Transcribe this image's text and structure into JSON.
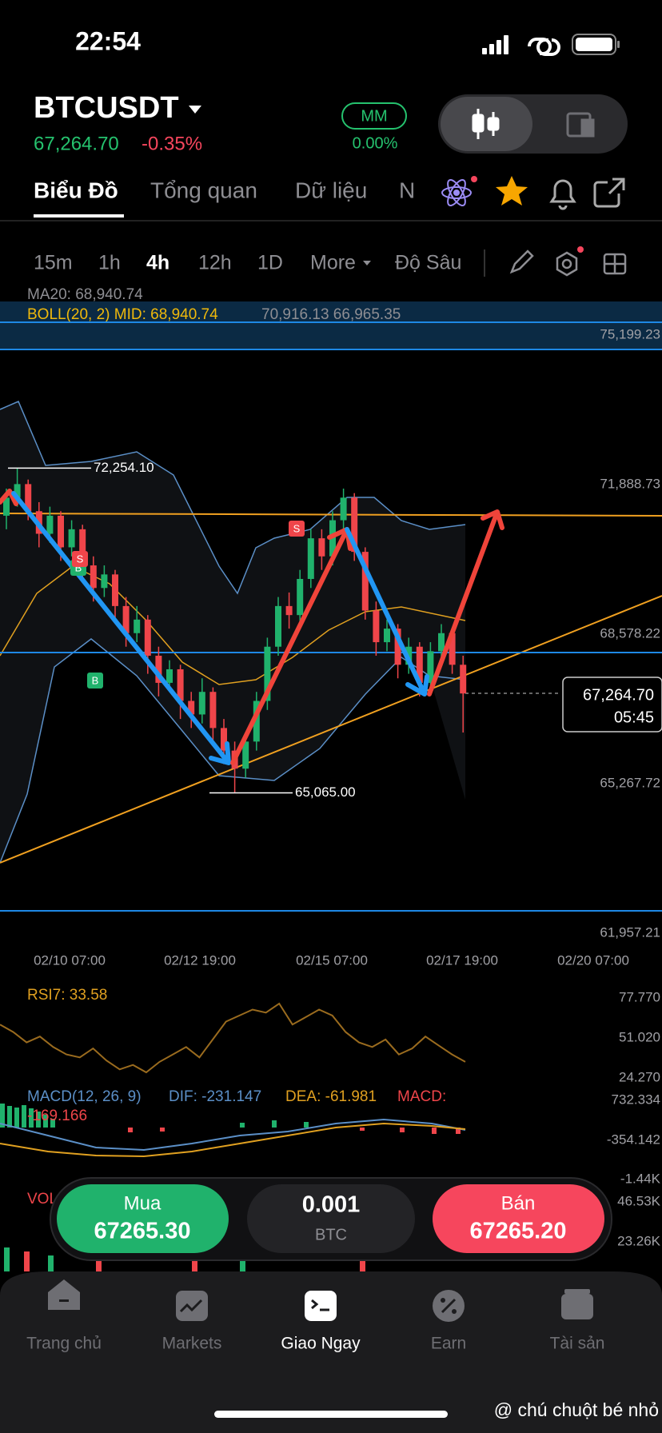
{
  "status": {
    "time": "22:54"
  },
  "header": {
    "symbol": "BTCUSDT",
    "price": "67,264.70",
    "change": "-0.35%",
    "badge": "MM",
    "badge_value": "0.00%"
  },
  "tabs": [
    "Biểu Đồ",
    "Tổng quan",
    "Dữ liệu",
    "N"
  ],
  "intervals": [
    "15m",
    "1h",
    "4h",
    "12h",
    "1D",
    "More",
    "Độ Sâu"
  ],
  "indicators": {
    "ma": "MA20: 68,940.74",
    "boll": "BOLL(20, 2) MID: 68,940.74",
    "boll_bands": "70,916.13 66,965.35"
  },
  "chart": {
    "yticks": [
      {
        "value": 75199.23,
        "label": "75,199.23"
      },
      {
        "value": 71888.73,
        "label": "71,888.73"
      },
      {
        "value": 68578.22,
        "label": "68,578.22"
      },
      {
        "value": 65267.72,
        "label": "65,267.72"
      },
      {
        "value": 61957.21,
        "label": "61,957.21"
      }
    ],
    "xticks": [
      "02/10 07:00",
      "02/12 19:00",
      "02/15 07:00",
      "02/17 19:00",
      "02/20 07:00"
    ],
    "candles": [
      [
        71200,
        71800,
        70900,
        71600
      ],
      [
        71600,
        72254.1,
        71400,
        71900
      ],
      [
        71900,
        72000,
        71100,
        71300
      ],
      [
        71300,
        71500,
        70500,
        70800
      ],
      [
        70800,
        71400,
        70600,
        71200
      ],
      [
        71200,
        71300,
        70200,
        70500
      ],
      [
        70500,
        71100,
        70300,
        70900
      ],
      [
        70900,
        71000,
        69800,
        70100
      ],
      [
        70100,
        70300,
        69300,
        69600
      ],
      [
        69600,
        70100,
        69400,
        69900
      ],
      [
        69900,
        70000,
        68900,
        69200
      ],
      [
        69200,
        69400,
        68300,
        68600
      ],
      [
        68600,
        69200,
        68400,
        68900
      ],
      [
        68900,
        69000,
        67700,
        68100
      ],
      [
        68100,
        68300,
        67200,
        67500
      ],
      [
        67500,
        68000,
        67300,
        67800
      ],
      [
        67800,
        67900,
        66700,
        67100
      ],
      [
        67100,
        67300,
        66500,
        66800
      ],
      [
        66800,
        67600,
        66600,
        67300
      ],
      [
        67300,
        67400,
        66200,
        66500
      ],
      [
        66500,
        66700,
        65700,
        66000
      ],
      [
        66000,
        66200,
        65065,
        65600
      ],
      [
        65600,
        66400,
        65400,
        66200
      ],
      [
        66200,
        67300,
        66000,
        67100
      ],
      [
        67100,
        68500,
        66900,
        68300
      ],
      [
        68300,
        69400,
        68100,
        69200
      ],
      [
        69200,
        69500,
        68700,
        69000
      ],
      [
        69000,
        70000,
        68800,
        69800
      ],
      [
        69800,
        70900,
        69600,
        70700
      ],
      [
        70700,
        70900,
        70000,
        70300
      ],
      [
        70300,
        71300,
        70100,
        71100
      ],
      [
        71100,
        71800,
        70900,
        71600
      ],
      [
        71600,
        71700,
        70200,
        70400
      ],
      [
        70400,
        70500,
        68900,
        69100
      ],
      [
        69100,
        69300,
        68100,
        68400
      ],
      [
        68400,
        68900,
        68200,
        68700
      ],
      [
        68700,
        68800,
        67600,
        67900
      ],
      [
        67900,
        68500,
        67700,
        68300
      ],
      [
        68300,
        68400,
        67200,
        67500
      ],
      [
        67500,
        68400,
        67300,
        68200
      ],
      [
        68200,
        68800,
        68000,
        68600
      ],
      [
        68600,
        68700,
        67700,
        67900
      ],
      [
        67900,
        68100,
        66400,
        67264.7
      ]
    ],
    "high_marker": {
      "value": 72254.1,
      "label": "72,254.10"
    },
    "low_marker": {
      "value": 65065,
      "label": "65,065.00"
    },
    "last_price": {
      "value": 67264.7,
      "label": "67,264.70"
    },
    "countdown": "05:45"
  },
  "rsi": {
    "label": "RSI7: 33.58",
    "ticks": [
      {
        "value": 77.77,
        "label": "77.770"
      },
      {
        "value": 51.02,
        "label": "51.020"
      },
      {
        "value": 24.27,
        "label": "24.270"
      }
    ],
    "values": [
      60,
      55,
      48,
      52,
      45,
      40,
      38,
      44,
      36,
      30,
      33,
      28,
      35,
      40,
      45,
      38,
      50,
      62,
      66,
      70,
      68,
      74,
      60,
      65,
      70,
      66,
      55,
      48,
      45,
      50,
      40,
      44,
      52,
      46,
      40,
      35
    ]
  },
  "macd": {
    "title": "MACD(12, 26, 9)",
    "dif": "DIF: -231.147",
    "dea": "DEA: -61.981",
    "macd": "MACD:",
    "macd_value": "-169.166",
    "ticks": [
      "732.334",
      "-354.142",
      "-1.44K"
    ]
  },
  "vol": {
    "label": "VOL",
    "ticks": [
      "46.53K",
      "23.26K"
    ]
  },
  "trade": {
    "buy_label": "Mua",
    "buy_price": "67265.30",
    "qty": "0.001",
    "unit": "BTC",
    "sell_label": "Bán",
    "sell_price": "67265.20"
  },
  "nav": [
    "Trang chủ",
    "Markets",
    "Giao Ngay",
    "Earn",
    "Tài sản"
  ],
  "watermark": "@ chú chuột bé nhỏ"
}
